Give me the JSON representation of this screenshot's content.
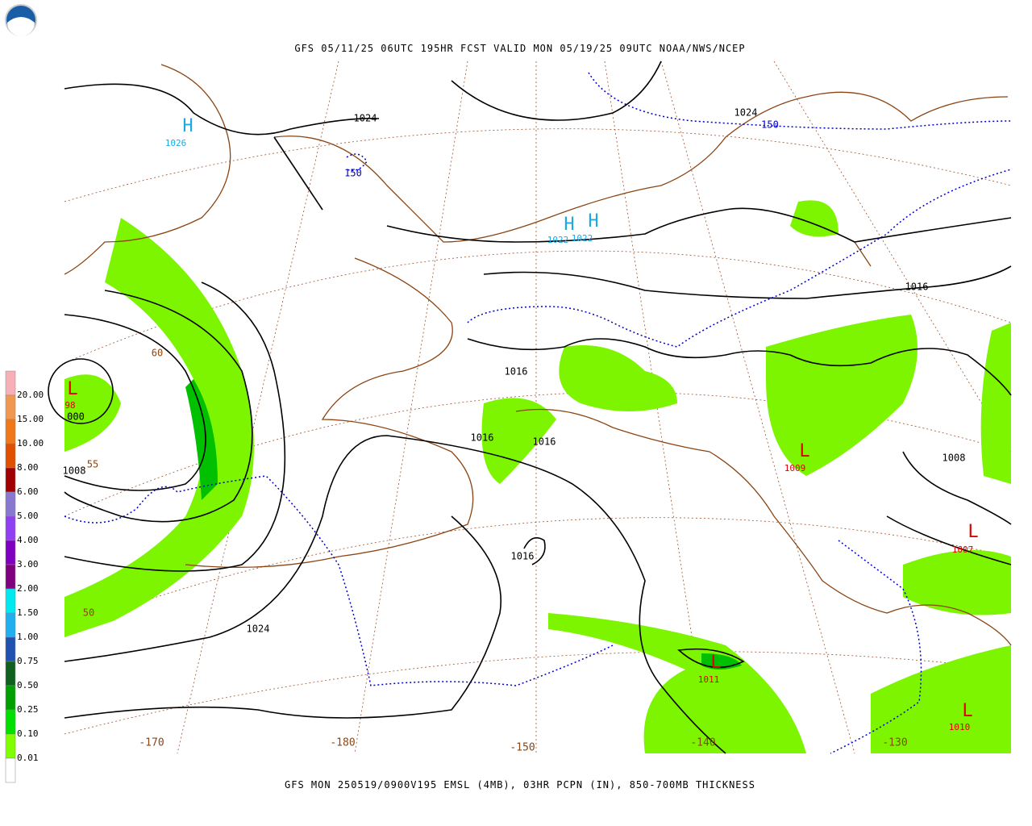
{
  "header": {
    "title": "GFS 05/11/25 06UTC 195HR FCST VALID MON 05/19/25 09UTC NOAA/NWS/NCEP"
  },
  "caption": "GFS MON 250519/0900V195 EMSL (4MB), 03HR PCPN (IN), 850-700MB THICKNESS",
  "legend": {
    "labels": [
      "20.00",
      "15.00",
      "10.00",
      "8.00",
      "6.00",
      "5.00",
      "4.00",
      "3.00",
      "2.00",
      "1.50",
      "1.00",
      "0.75",
      "0.50",
      "0.25",
      "0.10",
      "0.01"
    ]
  },
  "isobar_labels": [
    "1024",
    "1024",
    "1016",
    "1016",
    "1016",
    "1016",
    "1016",
    "1024",
    "1008",
    "1008",
    "000"
  ],
  "thickness_labels": [
    "60",
    "55",
    "50",
    "150",
    "150"
  ],
  "pressure_centers": [
    {
      "letter": "H",
      "value": "1026"
    },
    {
      "letter": "H",
      "value": "1022"
    },
    {
      "letter": "H",
      "value": "1022"
    },
    {
      "letter": "L",
      "value": "98"
    },
    {
      "letter": "L",
      "value": "1009"
    },
    {
      "letter": "L",
      "value": "1007"
    },
    {
      "letter": "L",
      "value": "1011"
    },
    {
      "letter": "L",
      "value": "1010"
    }
  ],
  "longitude_labels": [
    "-170",
    "-180",
    "-150",
    "-140",
    "-130"
  ]
}
